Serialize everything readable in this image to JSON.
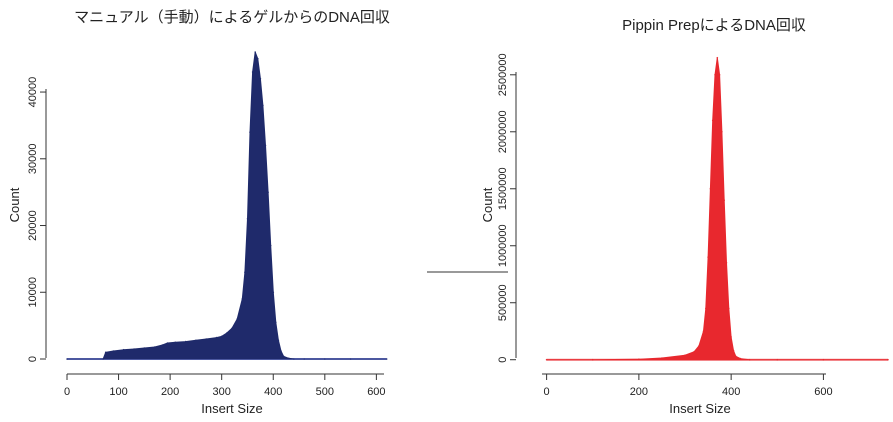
{
  "chart_data": [
    {
      "type": "area",
      "title": "マニュアル（手動）によるゲルからのDNA回収",
      "xlabel": "Insert Size",
      "ylabel": "Count",
      "xlim": [
        0,
        640
      ],
      "ylim": [
        0,
        46000
      ],
      "xticks": [
        "0",
        "100",
        "200",
        "300",
        "400",
        "500",
        "600"
      ],
      "yticks": [
        "0",
        "10000",
        "20000",
        "30000",
        "40000"
      ],
      "grid": false,
      "color": "#1f2a6b",
      "baseline_color": "#7a86d4",
      "series": [
        {
          "x": [
            0,
            70,
            75,
            90,
            110,
            130,
            150,
            170,
            185,
            195,
            210,
            230,
            250,
            270,
            290,
            300,
            310,
            320,
            330,
            340,
            345,
            350,
            355,
            360,
            365,
            370,
            375,
            380,
            385,
            390,
            395,
            400,
            405,
            410,
            415,
            420,
            430,
            440,
            460,
            500,
            550,
            620
          ],
          "y": [
            0,
            0,
            1000,
            1200,
            1400,
            1500,
            1650,
            1800,
            2100,
            2400,
            2500,
            2600,
            2800,
            3000,
            3200,
            3400,
            3900,
            4600,
            6000,
            9000,
            13000,
            21000,
            34000,
            43000,
            46000,
            45000,
            42000,
            38000,
            32000,
            25000,
            17000,
            10000,
            5500,
            2800,
            1200,
            400,
            100,
            0,
            0,
            0,
            0,
            0
          ]
        }
      ]
    },
    {
      "type": "area",
      "title": "Pippin PrepによるDNA回収",
      "xlabel": "Insert Size",
      "ylabel": "Count",
      "xlim": [
        -10,
        740
      ],
      "ylim": [
        -20000,
        2700000
      ],
      "xticks": [
        "0",
        "200",
        "400",
        "600"
      ],
      "yticks": [
        "0",
        "500000",
        "1000000",
        "1500000",
        "2000000",
        "2500000"
      ],
      "grid": false,
      "color": "#e8282e",
      "baseline_color": "#f07a7e",
      "series": [
        {
          "x": [
            0,
            100,
            200,
            250,
            300,
            320,
            330,
            340,
            345,
            350,
            355,
            360,
            365,
            370,
            375,
            380,
            385,
            390,
            395,
            400,
            405,
            410,
            420,
            440,
            500,
            600,
            740
          ],
          "y": [
            0,
            0,
            5000,
            15000,
            40000,
            70000,
            120000,
            250000,
            450000,
            900000,
            1500000,
            2100000,
            2500000,
            2650000,
            2500000,
            2000000,
            1400000,
            850000,
            450000,
            200000,
            80000,
            30000,
            10000,
            0,
            0,
            0,
            0
          ]
        }
      ]
    }
  ]
}
